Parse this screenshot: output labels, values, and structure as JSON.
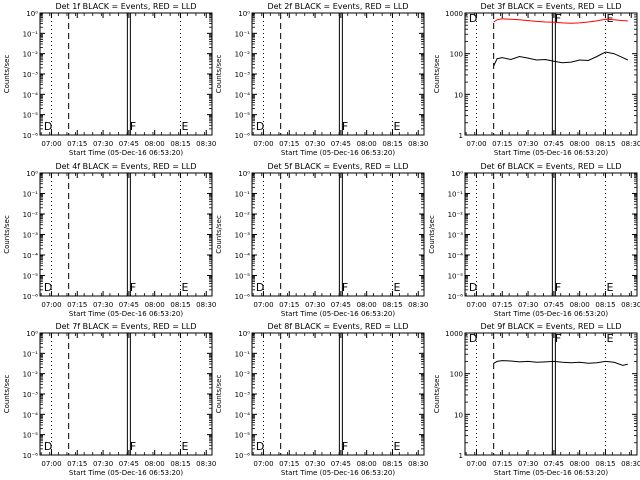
{
  "colors": {
    "events": "#000000",
    "lld": "#ff0000",
    "background": "#ffffff"
  },
  "x_axis": {
    "ticks": [
      "07:00",
      "07:15",
      "07:30",
      "07:45",
      "08:00",
      "08:15",
      "08:30"
    ],
    "start_label": "Start Time (05-Dec-16 06:53:20)",
    "range": [
      "06:53:20",
      "08:33:20"
    ]
  },
  "y_axis": {
    "label": "Counts/sec",
    "scale": "log",
    "empty_ticks": [
      "10⁰",
      "10⁻¹",
      "10⁻²",
      "10⁻³",
      "10⁻⁴",
      "10⁻⁵",
      "10⁻⁶"
    ],
    "data_ticks": [
      "1",
      "10",
      "100",
      "1000"
    ],
    "empty_range": [
      1e-06,
      1
    ],
    "data_range": [
      1,
      1000
    ]
  },
  "markers": {
    "dotted": [
      "07:00",
      "08:15"
    ],
    "dashed": [
      "07:10"
    ],
    "double": [
      "07:45"
    ],
    "letters": [
      {
        "label": "D",
        "at": "06:55"
      },
      {
        "label": "F",
        "at": "07:45"
      },
      {
        "label": "E",
        "at": "08:15"
      }
    ]
  },
  "chart_data": [
    {
      "type": "line",
      "title": "Det 1f BLACK = Events, RED = LLD",
      "xlabel": "Start Time (05-Dec-16 06:53:20)",
      "ylabel": "Counts/sec",
      "yscale": "log",
      "ylim": [
        1e-06,
        1
      ],
      "series": []
    },
    {
      "type": "line",
      "title": "Det 2f BLACK = Events, RED = LLD",
      "xlabel": "Start Time (05-Dec-16 06:53:20)",
      "ylabel": "Counts/sec",
      "yscale": "log",
      "ylim": [
        1e-06,
        1
      ],
      "series": []
    },
    {
      "type": "line",
      "title": "Det 3f BLACK = Events, RED = LLD",
      "xlabel": "Start Time (05-Dec-16 06:53:20)",
      "ylabel": "Counts/sec",
      "yscale": "log",
      "ylim": [
        1,
        1000
      ],
      "series": [
        {
          "color": "#000000",
          "x": [
            "07:10",
            "07:12",
            "07:15",
            "07:20",
            "07:25",
            "07:30",
            "07:35",
            "07:40",
            "07:45",
            "07:50",
            "07:55",
            "08:00",
            "08:05",
            "08:10",
            "08:15",
            "08:20",
            "08:25",
            "08:28"
          ],
          "y": [
            50,
            75,
            80,
            72,
            85,
            78,
            70,
            72,
            65,
            60,
            62,
            70,
            68,
            85,
            110,
            100,
            80,
            70
          ]
        },
        {
          "color": "#ff0000",
          "x": [
            "07:10",
            "07:12",
            "07:15",
            "07:20",
            "07:25",
            "07:30",
            "07:35",
            "07:40",
            "07:45",
            "07:50",
            "07:55",
            "08:00",
            "08:05",
            "08:10",
            "08:15",
            "08:20",
            "08:25",
            "08:28"
          ],
          "y": [
            600,
            680,
            720,
            700,
            680,
            650,
            620,
            600,
            590,
            570,
            560,
            570,
            600,
            640,
            700,
            680,
            650,
            640
          ]
        }
      ]
    },
    {
      "type": "line",
      "title": "Det 4f BLACK = Events, RED = LLD",
      "xlabel": "Start Time (05-Dec-16 06:53:20)",
      "ylabel": "Counts/sec",
      "yscale": "log",
      "ylim": [
        1e-06,
        1
      ],
      "series": []
    },
    {
      "type": "line",
      "title": "Det 5f BLACK = Events, RED = LLD",
      "xlabel": "Start Time (05-Dec-16 06:53:20)",
      "ylabel": "Counts/sec",
      "yscale": "log",
      "ylim": [
        1e-06,
        1
      ],
      "series": []
    },
    {
      "type": "line",
      "title": "Det 6f BLACK = Events, RED = LLD",
      "xlabel": "Start Time (05-Dec-16 06:53:20)",
      "ylabel": "Counts/sec",
      "yscale": "log",
      "ylim": [
        1e-06,
        1
      ],
      "series": []
    },
    {
      "type": "line",
      "title": "Det 7f BLACK = Events, RED = LLD",
      "xlabel": "Start Time (05-Dec-16 06:53:20)",
      "ylabel": "Counts/sec",
      "yscale": "log",
      "ylim": [
        1e-06,
        1
      ],
      "series": []
    },
    {
      "type": "line",
      "title": "Det 8f BLACK = Events, RED = LLD",
      "xlabel": "Start Time (05-Dec-16 06:53:20)",
      "ylabel": "Counts/sec",
      "yscale": "log",
      "ylim": [
        1e-06,
        1
      ],
      "series": []
    },
    {
      "type": "line",
      "title": "Det 9f BLACK = Events, RED = LLD",
      "xlabel": "Start Time (05-Dec-16 06:53:20)",
      "ylabel": "Counts/sec",
      "yscale": "log",
      "ylim": [
        1,
        1000
      ],
      "series": [
        {
          "color": "#000000",
          "x": [
            "07:10",
            "07:12",
            "07:15",
            "07:20",
            "07:25",
            "07:30",
            "07:35",
            "07:40",
            "07:45",
            "07:50",
            "07:55",
            "08:00",
            "08:05",
            "08:10",
            "08:15",
            "08:20",
            "08:25",
            "08:28"
          ],
          "y": [
            180,
            200,
            210,
            205,
            195,
            200,
            190,
            195,
            200,
            190,
            185,
            190,
            180,
            185,
            200,
            190,
            160,
            170
          ]
        }
      ]
    }
  ]
}
